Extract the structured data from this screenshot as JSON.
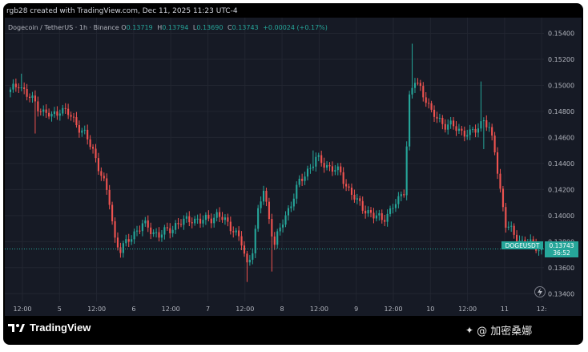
{
  "credit": "rgb28 created with TradingView.com, Dec 11, 2025 11:23 UTC-4",
  "legend": {
    "symbol": "Dogecoin / TetherUS · 1h · Binance",
    "o_label": "O",
    "o_value": "0.13719",
    "h_label": "H",
    "h_value": "0.13794",
    "l_label": "L",
    "l_value": "0.13690",
    "c_label": "C",
    "c_value": "0.13743",
    "change": "+0.00024 (+0.17%)"
  },
  "footer": {
    "brand": "TradingView",
    "watermark": "@ 加密桑娜"
  },
  "colors": {
    "up": "#26a69a",
    "down": "#ef5350",
    "background": "#161a25",
    "grid": "#222631",
    "axis_text": "#b2b5be",
    "price_line": "#26a69a"
  },
  "chart_data": {
    "type": "candlestick",
    "symbol": "DOGEUSDT",
    "ylim": [
      0.1334,
      0.1552
    ],
    "y_ticks": [
      "0.15400",
      "0.15200",
      "0.15000",
      "0.14800",
      "0.14600",
      "0.14400",
      "0.14200",
      "0.14000",
      "0.13800",
      "0.13600",
      "0.13400"
    ],
    "x_tick_labels": [
      "12:00",
      "5",
      "12:00",
      "6",
      "12:00",
      "7",
      "12:00",
      "8",
      "12:00",
      "9",
      "12:00",
      "10",
      "12:00",
      "11",
      "12:"
    ],
    "current_price_label": "0.13743",
    "countdown_label": "36:52",
    "series_label": "DOGEUSDT",
    "waypoints": [
      [
        0,
        0.1495
      ],
      [
        3,
        0.1502
      ],
      [
        6,
        0.1492
      ],
      [
        9,
        0.1487
      ],
      [
        12,
        0.1479
      ],
      [
        15,
        0.1476
      ],
      [
        18,
        0.1482
      ],
      [
        21,
        0.1478
      ],
      [
        24,
        0.1471
      ],
      [
        27,
        0.1462
      ],
      [
        30,
        0.145
      ],
      [
        33,
        0.1432
      ],
      [
        36,
        0.141
      ],
      [
        38,
        0.1382
      ],
      [
        40,
        0.1374
      ],
      [
        42,
        0.1378
      ],
      [
        45,
        0.1387
      ],
      [
        48,
        0.1393
      ],
      [
        51,
        0.1389
      ],
      [
        54,
        0.1385
      ],
      [
        57,
        0.1388
      ],
      [
        60,
        0.1393
      ],
      [
        63,
        0.1395
      ],
      [
        66,
        0.1398
      ],
      [
        69,
        0.1395
      ],
      [
        72,
        0.1398
      ],
      [
        75,
        0.14
      ],
      [
        78,
        0.1396
      ],
      [
        81,
        0.139
      ],
      [
        84,
        0.1378
      ],
      [
        86,
        0.1362
      ],
      [
        88,
        0.1375
      ],
      [
        90,
        0.1402
      ],
      [
        92,
        0.142
      ],
      [
        94,
        0.1398
      ],
      [
        96,
        0.1378
      ],
      [
        99,
        0.1395
      ],
      [
        102,
        0.141
      ],
      [
        105,
        0.1425
      ],
      [
        108,
        0.1435
      ],
      [
        111,
        0.1443
      ],
      [
        114,
        0.144
      ],
      [
        117,
        0.1436
      ],
      [
        120,
        0.1432
      ],
      [
        123,
        0.142
      ],
      [
        126,
        0.141
      ],
      [
        129,
        0.1405
      ],
      [
        132,
        0.1399
      ],
      [
        135,
        0.1398
      ],
      [
        138,
        0.1403
      ],
      [
        141,
        0.1412
      ],
      [
        143,
        0.142
      ],
      [
        145,
        0.149
      ],
      [
        147,
        0.1503
      ],
      [
        149,
        0.1498
      ],
      [
        151,
        0.149
      ],
      [
        153,
        0.1478
      ],
      [
        155,
        0.1475
      ],
      [
        158,
        0.147
      ],
      [
        161,
        0.1468
      ],
      [
        164,
        0.1465
      ],
      [
        167,
        0.1462
      ],
      [
        170,
        0.1468
      ],
      [
        172,
        0.1475
      ],
      [
        174,
        0.1465
      ],
      [
        176,
        0.145
      ],
      [
        178,
        0.142
      ],
      [
        180,
        0.1393
      ],
      [
        183,
        0.1385
      ],
      [
        186,
        0.138
      ],
      [
        189,
        0.1378
      ],
      [
        192,
        0.1376
      ],
      [
        193,
        0.1374
      ]
    ],
    "spikes": [
      {
        "i": 4,
        "dir": "up",
        "val": 0.1509
      },
      {
        "i": 9,
        "dir": "down",
        "val": 0.1463
      },
      {
        "i": 86,
        "dir": "down",
        "val": 0.1349
      },
      {
        "i": 95,
        "dir": "down",
        "val": 0.1357
      },
      {
        "i": 110,
        "dir": "up",
        "val": 0.145
      },
      {
        "i": 146,
        "dir": "up",
        "val": 0.1532
      },
      {
        "i": 171,
        "dir": "up",
        "val": 0.1503
      },
      {
        "i": 172,
        "dir": "down",
        "val": 0.1451
      }
    ]
  }
}
